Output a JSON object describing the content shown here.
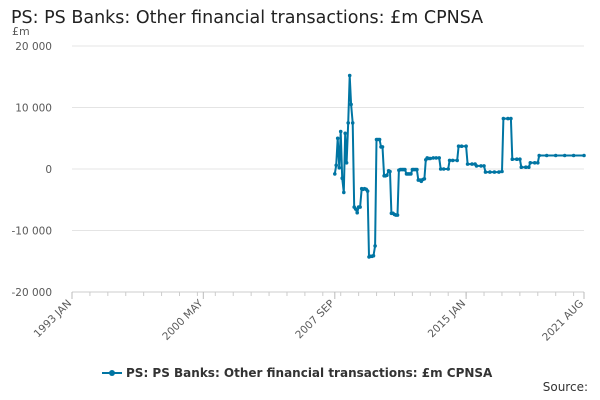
{
  "chart_data": {
    "type": "line",
    "title": "PS: PS Banks: Other financial transactions: £m CPNSA",
    "unit_label": "£m",
    "ylim": [
      -20000,
      20000
    ],
    "y_ticks": [
      20000,
      10000,
      0,
      -10000,
      -20000
    ],
    "y_tick_labels": [
      "20 000",
      "10 000",
      "0",
      "-10 000",
      "-20 000"
    ],
    "x_ticks": [
      {
        "label": "1993 JAN",
        "t": 1993.0
      },
      {
        "label": "2000 MAY",
        "t": 2000.33
      },
      {
        "label": "2007 SEP",
        "t": 2007.67
      },
      {
        "label": "2015 JAN",
        "t": 2015.0
      },
      {
        "label": "2021 AUG",
        "t": 2021.58
      }
    ],
    "xlim": [
      1993.0,
      2021.58
    ],
    "grid": true,
    "legend_position": "bottom",
    "source_label": "Source:",
    "series": [
      {
        "name": "PS: PS Banks: Other financial transactions: £m CPNSA",
        "color": "#0075a3",
        "points": [
          [
            2007.67,
            -800
          ],
          [
            2007.75,
            600
          ],
          [
            2007.83,
            5000
          ],
          [
            2007.92,
            200
          ],
          [
            2008.0,
            6100
          ],
          [
            2008.08,
            -1500
          ],
          [
            2008.17,
            -3800
          ],
          [
            2008.25,
            5800
          ],
          [
            2008.33,
            1000
          ],
          [
            2008.42,
            7500
          ],
          [
            2008.5,
            15200
          ],
          [
            2008.58,
            10500
          ],
          [
            2008.67,
            7500
          ],
          [
            2008.75,
            -6200
          ],
          [
            2008.83,
            -6500
          ],
          [
            2008.92,
            -7100
          ],
          [
            2009.0,
            -6200
          ],
          [
            2009.08,
            -6200
          ],
          [
            2009.17,
            -3200
          ],
          [
            2009.25,
            -3300
          ],
          [
            2009.33,
            -3200
          ],
          [
            2009.42,
            -3300
          ],
          [
            2009.5,
            -3600
          ],
          [
            2009.58,
            -14300
          ],
          [
            2009.67,
            -14200
          ],
          [
            2009.75,
            -14200
          ],
          [
            2009.83,
            -14100
          ],
          [
            2009.92,
            -12500
          ],
          [
            2010.0,
            4800
          ],
          [
            2010.08,
            4800
          ],
          [
            2010.17,
            4800
          ],
          [
            2010.25,
            3600
          ],
          [
            2010.33,
            3600
          ],
          [
            2010.42,
            -1100
          ],
          [
            2010.5,
            -1100
          ],
          [
            2010.58,
            -1000
          ],
          [
            2010.67,
            -300
          ],
          [
            2010.75,
            -400
          ],
          [
            2010.83,
            -7200
          ],
          [
            2010.92,
            -7200
          ],
          [
            2011.0,
            -7400
          ],
          [
            2011.08,
            -7500
          ],
          [
            2011.17,
            -7500
          ],
          [
            2011.25,
            -200
          ],
          [
            2011.33,
            -100
          ],
          [
            2011.42,
            -100
          ],
          [
            2011.5,
            -100
          ],
          [
            2011.58,
            -100
          ],
          [
            2011.67,
            -800
          ],
          [
            2011.75,
            -800
          ],
          [
            2011.83,
            -800
          ],
          [
            2011.92,
            -800
          ],
          [
            2012.0,
            -100
          ],
          [
            2012.08,
            -100
          ],
          [
            2012.17,
            -100
          ],
          [
            2012.25,
            -100
          ],
          [
            2012.33,
            -1800
          ],
          [
            2012.42,
            -1800
          ],
          [
            2012.5,
            -2000
          ],
          [
            2012.58,
            -1700
          ],
          [
            2012.67,
            -1600
          ],
          [
            2012.75,
            1500
          ],
          [
            2012.83,
            1800
          ],
          [
            2012.92,
            1700
          ],
          [
            2013.0,
            1700
          ],
          [
            2013.17,
            1800
          ],
          [
            2013.33,
            1800
          ],
          [
            2013.5,
            1800
          ],
          [
            2013.58,
            0
          ],
          [
            2013.75,
            0
          ],
          [
            2014.0,
            0
          ],
          [
            2014.08,
            1400
          ],
          [
            2014.25,
            1400
          ],
          [
            2014.5,
            1400
          ],
          [
            2014.58,
            3700
          ],
          [
            2014.75,
            3700
          ],
          [
            2015.0,
            3700
          ],
          [
            2015.08,
            800
          ],
          [
            2015.33,
            800
          ],
          [
            2015.5,
            800
          ],
          [
            2015.58,
            500
          ],
          [
            2015.83,
            500
          ],
          [
            2016.0,
            500
          ],
          [
            2016.08,
            -500
          ],
          [
            2016.33,
            -500
          ],
          [
            2016.58,
            -500
          ],
          [
            2016.83,
            -500
          ],
          [
            2017.0,
            -400
          ],
          [
            2017.08,
            8200
          ],
          [
            2017.33,
            8200
          ],
          [
            2017.5,
            8200
          ],
          [
            2017.58,
            1600
          ],
          [
            2017.83,
            1600
          ],
          [
            2018.0,
            1600
          ],
          [
            2018.08,
            300
          ],
          [
            2018.33,
            300
          ],
          [
            2018.5,
            300
          ],
          [
            2018.58,
            1000
          ],
          [
            2018.83,
            1000
          ],
          [
            2019.0,
            1000
          ],
          [
            2019.08,
            2200
          ],
          [
            2019.5,
            2200
          ],
          [
            2020.0,
            2200
          ],
          [
            2020.5,
            2200
          ],
          [
            2021.0,
            2200
          ],
          [
            2021.58,
            2200
          ]
        ]
      }
    ]
  }
}
